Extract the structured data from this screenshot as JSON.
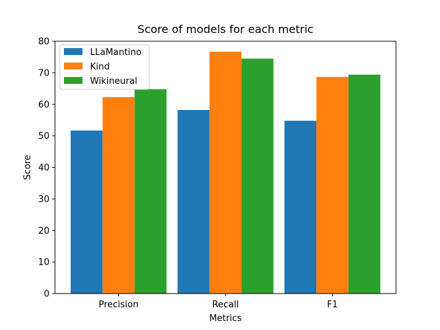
{
  "chart_data": {
    "type": "bar",
    "title": "Score of models for each metric",
    "xlabel": "Metrics",
    "ylabel": "Score",
    "categories": [
      "Precision",
      "Recall",
      "F1"
    ],
    "ylim": [
      0,
      80
    ],
    "yticks": [
      0,
      10,
      20,
      30,
      40,
      50,
      60,
      70,
      80
    ],
    "grid": false,
    "legend_position": "top-left",
    "series": [
      {
        "name": "LLaMantino",
        "color": "#1f77b4",
        "values": [
          51.7,
          58.2,
          54.8
        ]
      },
      {
        "name": "Kind",
        "color": "#ff7f0e",
        "values": [
          62.3,
          76.7,
          68.7
        ]
      },
      {
        "name": "Wikineural",
        "color": "#2ca02c",
        "values": [
          64.8,
          74.5,
          69.4
        ]
      }
    ]
  }
}
